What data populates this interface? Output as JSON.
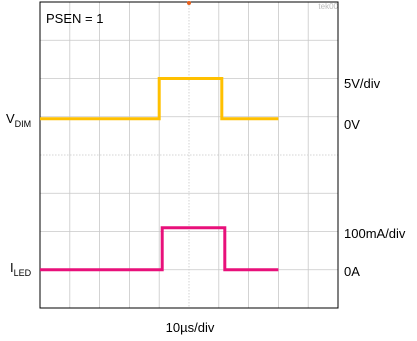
{
  "chart_data": {
    "type": "line",
    "annotation": "PSEN = 1",
    "figure_id": "tek00",
    "xlabel": "10µs/div",
    "grid": true,
    "divisions": {
      "x": 10,
      "y": 8
    },
    "series": [
      {
        "name": "VDIM",
        "label_main": "V",
        "label_sub": "DIM",
        "color": "#FFC000",
        "scale_label": "5V/div",
        "zero_label": "0V",
        "x_div": [
          0,
          4.0,
          4.0,
          6.1,
          6.1,
          8
        ],
        "y_div": [
          4.95,
          4.95,
          6.0,
          6.0,
          4.95,
          4.95
        ]
      },
      {
        "name": "ILED",
        "label_main": "I",
        "label_sub": "LED",
        "color": "#E8107A",
        "scale_label": "100mA/div",
        "zero_label": "0A",
        "x_div": [
          0,
          4.1,
          4.1,
          6.2,
          6.2,
          8
        ],
        "y_div": [
          1.0,
          1.0,
          2.1,
          2.1,
          1.0,
          1.0
        ]
      }
    ]
  }
}
